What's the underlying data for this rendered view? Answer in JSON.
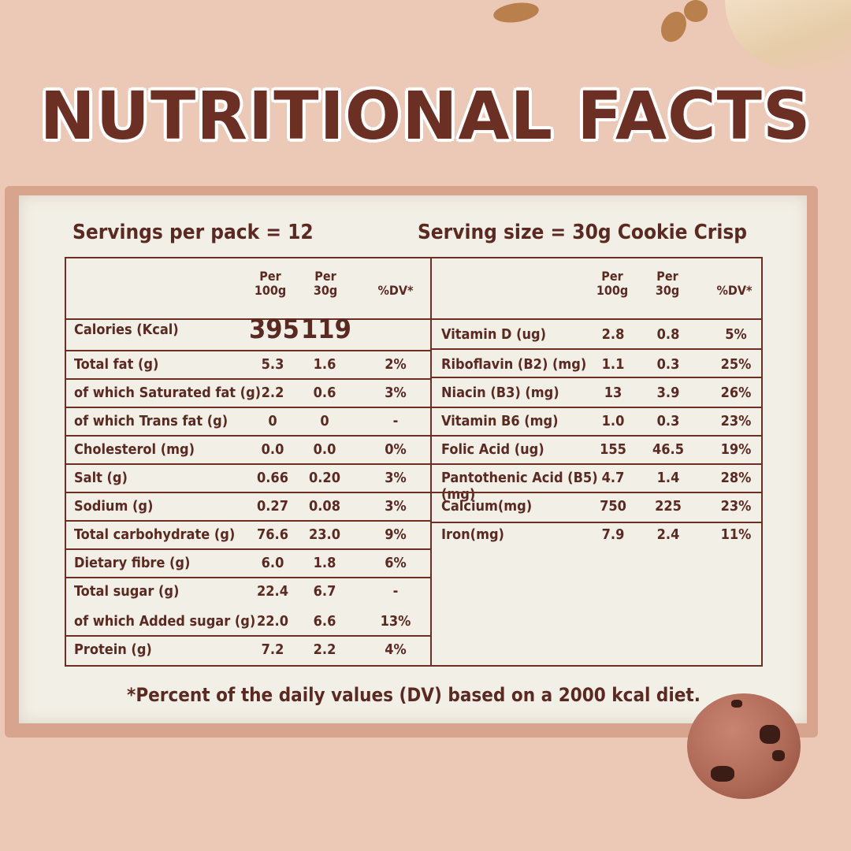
{
  "title": "NUTRITIONAL FACTS",
  "servings_per_pack": "Servings per pack = 12",
  "serving_size": "Serving size = 30g Cookie Crisp",
  "headers": {
    "per100": "Per 100g",
    "per30": "Per 30g",
    "dv": "%DV*"
  },
  "left_rows": [
    {
      "name": "Calories (Kcal)",
      "p100": "395",
      "p30": "119",
      "dv": ""
    },
    {
      "name": "Total fat (g)",
      "p100": "5.3",
      "p30": "1.6",
      "dv": "2%"
    },
    {
      "name": "of which Saturated fat (g)",
      "p100": "2.2",
      "p30": "0.6",
      "dv": "3%"
    },
    {
      "name": "of which Trans fat (g)",
      "p100": "0",
      "p30": "0",
      "dv": "-"
    },
    {
      "name": "Cholesterol (mg)",
      "p100": "0.0",
      "p30": "0.0",
      "dv": "0%"
    },
    {
      "name": "Salt (g)",
      "p100": "0.66",
      "p30": "0.20",
      "dv": "3%"
    },
    {
      "name": "Sodium (g)",
      "p100": "0.27",
      "p30": "0.08",
      "dv": "3%"
    },
    {
      "name": "Total carbohydrate (g)",
      "p100": "76.6",
      "p30": "23.0",
      "dv": "9%"
    },
    {
      "name": "Dietary fibre (g)",
      "p100": "6.0",
      "p30": "1.8",
      "dv": "6%"
    },
    {
      "name": "Total sugar (g)",
      "p100": "22.4",
      "p30": "6.7",
      "dv": "-"
    },
    {
      "name": "of which Added sugar (g)",
      "p100": "22.0",
      "p30": "6.6",
      "dv": "13%"
    },
    {
      "name": "Protein (g)",
      "p100": "7.2",
      "p30": "2.2",
      "dv": "4%"
    }
  ],
  "right_rows": [
    {
      "name": "Vitamin D (ug)",
      "p100": "2.8",
      "p30": "0.8",
      "dv": "5%"
    },
    {
      "name": "Riboflavin (B2) (mg)",
      "p100": "1.1",
      "p30": "0.3",
      "dv": "25%"
    },
    {
      "name": "Niacin (B3) (mg)",
      "p100": "13",
      "p30": "3.9",
      "dv": "26%"
    },
    {
      "name": "Vitamin B6 (mg)",
      "p100": "1.0",
      "p30": "0.3",
      "dv": "23%"
    },
    {
      "name": "Folic Acid (ug)",
      "p100": "155",
      "p30": "46.5",
      "dv": "19%"
    },
    {
      "name": "Pantothenic Acid (B5) (mg)",
      "p100": "4.7",
      "p30": "1.4",
      "dv": "28%"
    },
    {
      "name": "Calcium(mg)",
      "p100": "750",
      "p30": "225",
      "dv": "23%"
    },
    {
      "name": "Iron(mg)",
      "p100": "7.9",
      "p30": "2.4",
      "dv": "11%"
    }
  ],
  "footnote": "*Percent of the daily values (DV) based on a 2000 kcal diet."
}
